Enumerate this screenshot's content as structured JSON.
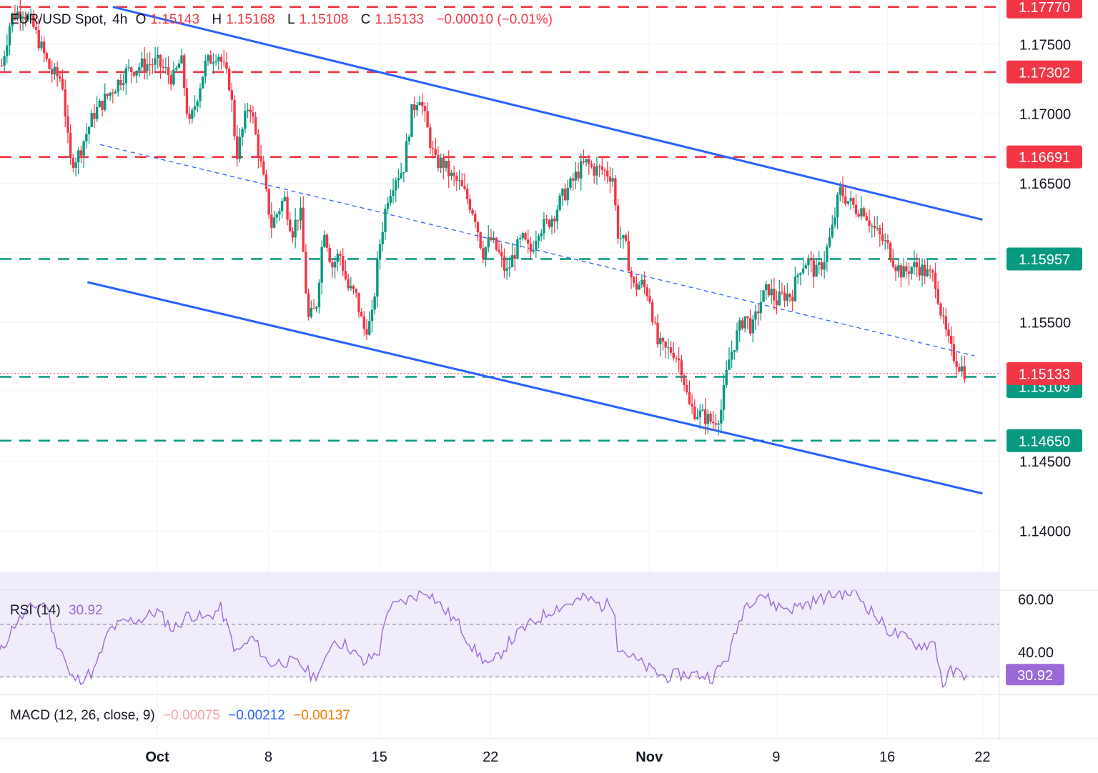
{
  "chart_data": {
    "type": "candlestick",
    "symbol": "EUR/USD Spot",
    "interval": "4h",
    "ohlc_legend": {
      "o_label": "O",
      "o": "1.15143",
      "h_label": "H",
      "h": "1.15168",
      "l_label": "L",
      "l": "1.15108",
      "c_label": "C",
      "c": "1.15133",
      "change": "−0.00010 (−0.01%)"
    },
    "x_ticks": [
      {
        "label": "Oct",
        "day": 0,
        "bold": true
      },
      {
        "label": "8",
        "day": 7
      },
      {
        "label": "15",
        "day": 14
      },
      {
        "label": "22",
        "day": 21
      },
      {
        "label": "Nov",
        "day": 31,
        "bold": true
      },
      {
        "label": "9",
        "day": 39
      },
      {
        "label": "16",
        "day": 46
      },
      {
        "label": "22",
        "day": 52
      }
    ],
    "y_ticks": [
      "1.17500",
      "1.17000",
      "1.16500",
      "1.15500",
      "1.14500",
      "1.14000"
    ],
    "ylim": [
      1.138,
      1.1782
    ],
    "price_levels": [
      {
        "value": 1.1777,
        "label": "1.17770",
        "kind": "resistance",
        "color": "#f23645"
      },
      {
        "value": 1.17302,
        "label": "1.17302",
        "kind": "resistance",
        "color": "#f23645"
      },
      {
        "value": 1.16691,
        "label": "1.16691",
        "kind": "resistance",
        "color": "#f23645"
      },
      {
        "value": 1.15957,
        "label": "1.15957",
        "kind": "support",
        "color": "#089981"
      },
      {
        "value": 1.15109,
        "label": "1.15109",
        "kind": "support",
        "color": "#089981"
      },
      {
        "value": 1.1465,
        "label": "1.14650",
        "kind": "support",
        "color": "#089981"
      }
    ],
    "last_price": {
      "value": 1.15133,
      "label": "1.15133",
      "color": "#f23645"
    },
    "channel": {
      "upper": [
        {
          "day": -2.8,
          "price": 1.1777
        },
        {
          "day": 52,
          "price": 1.1624
        }
      ],
      "lower": [
        {
          "day": -4.4,
          "price": 1.1579
        },
        {
          "day": 52,
          "price": 1.1427
        }
      ],
      "mid": [
        {
          "day": -3.6,
          "price": 1.1678
        },
        {
          "day": 51.5,
          "price": 1.1526
        }
      ]
    },
    "price_anchors": [
      [
        -9.8,
        1.1735
      ],
      [
        -9.2,
        1.177
      ],
      [
        -8.5,
        1.1775
      ],
      [
        -7.9,
        1.1765
      ],
      [
        -6.7,
        1.173
      ],
      [
        -6.0,
        1.1725
      ],
      [
        -5.5,
        1.1665
      ],
      [
        -5.0,
        1.167
      ],
      [
        -4.0,
        1.17
      ],
      [
        -3.0,
        1.1715
      ],
      [
        -2.0,
        1.173
      ],
      [
        -1.0,
        1.1735
      ],
      [
        0.0,
        1.1737
      ],
      [
        1.0,
        1.1725
      ],
      [
        1.5,
        1.174
      ],
      [
        2.0,
        1.169
      ],
      [
        3.0,
        1.1735
      ],
      [
        3.8,
        1.1745
      ],
      [
        4.6,
        1.172
      ],
      [
        5.0,
        1.167
      ],
      [
        5.8,
        1.171
      ],
      [
        6.5,
        1.1665
      ],
      [
        7.2,
        1.162
      ],
      [
        8.0,
        1.164
      ],
      [
        8.5,
        1.1615
      ],
      [
        9.0,
        1.1632
      ],
      [
        9.5,
        1.1552
      ],
      [
        10.0,
        1.156
      ],
      [
        10.5,
        1.162
      ],
      [
        11.0,
        1.159
      ],
      [
        11.5,
        1.16
      ],
      [
        12.0,
        1.1575
      ],
      [
        12.5,
        1.157
      ],
      [
        13.0,
        1.1545
      ],
      [
        13.5,
        1.155
      ],
      [
        14.0,
        1.1605
      ],
      [
        14.5,
        1.164
      ],
      [
        15.0,
        1.1655
      ],
      [
        15.5,
        1.166
      ],
      [
        16.0,
        1.17
      ],
      [
        16.5,
        1.1715
      ],
      [
        17.0,
        1.169
      ],
      [
        17.5,
        1.1665
      ],
      [
        18.0,
        1.1665
      ],
      [
        18.5,
        1.1655
      ],
      [
        19.0,
        1.165
      ],
      [
        19.5,
        1.164
      ],
      [
        20.0,
        1.1628
      ],
      [
        20.5,
        1.16
      ],
      [
        21.0,
        1.161
      ],
      [
        21.5,
        1.16
      ],
      [
        22.0,
        1.1585
      ],
      [
        22.5,
        1.16
      ],
      [
        23.0,
        1.161
      ],
      [
        23.5,
        1.16
      ],
      [
        24.0,
        1.1618
      ],
      [
        24.5,
        1.162
      ],
      [
        25.0,
        1.1628
      ],
      [
        25.5,
        1.164
      ],
      [
        26.0,
        1.1648
      ],
      [
        26.5,
        1.1658
      ],
      [
        27.0,
        1.1665
      ],
      [
        27.5,
        1.166
      ],
      [
        28.0,
        1.166
      ],
      [
        28.7,
        1.1655
      ],
      [
        29.0,
        1.1615
      ],
      [
        29.5,
        1.1605
      ],
      [
        30.0,
        1.1575
      ],
      [
        30.5,
        1.1578
      ],
      [
        31.0,
        1.157
      ],
      [
        31.5,
        1.1535
      ],
      [
        32.0,
        1.153
      ],
      [
        32.5,
        1.153
      ],
      [
        33.0,
        1.152
      ],
      [
        33.5,
        1.149
      ],
      [
        34.0,
        1.1485
      ],
      [
        34.5,
        1.1482
      ],
      [
        35.0,
        1.1478
      ],
      [
        35.5,
        1.1485
      ],
      [
        36.0,
        1.1522
      ],
      [
        36.5,
        1.154
      ],
      [
        37.0,
        1.1555
      ],
      [
        37.5,
        1.1545
      ],
      [
        38.0,
        1.1565
      ],
      [
        38.5,
        1.1575
      ],
      [
        39.0,
        1.1565
      ],
      [
        39.5,
        1.157
      ],
      [
        40.0,
        1.157
      ],
      [
        40.5,
        1.159
      ],
      [
        41.0,
        1.1595
      ],
      [
        41.5,
        1.1585
      ],
      [
        42.0,
        1.1595
      ],
      [
        42.5,
        1.1615
      ],
      [
        43.0,
        1.1645
      ],
      [
        43.5,
        1.1638
      ],
      [
        44.0,
        1.1632
      ],
      [
        44.5,
        1.1632
      ],
      [
        45.0,
        1.162
      ],
      [
        45.5,
        1.1612
      ],
      [
        46.0,
        1.1605
      ],
      [
        46.5,
        1.1592
      ],
      [
        47.0,
        1.1585
      ],
      [
        47.5,
        1.159
      ],
      [
        48.0,
        1.159
      ],
      [
        48.5,
        1.1585
      ],
      [
        49.0,
        1.1582
      ],
      [
        49.5,
        1.155
      ],
      [
        50.0,
        1.153
      ],
      [
        50.5,
        1.152
      ],
      [
        51.0,
        1.1513
      ]
    ],
    "rsi": {
      "label": "RSI (14)",
      "value": "30.92",
      "y_ticks": [
        "60.00",
        "40.00"
      ],
      "ylim": [
        23.4,
        63.0
      ],
      "levels": [
        50,
        30
      ],
      "anchors": [
        [
          -10,
          38
        ],
        [
          -9,
          50
        ],
        [
          -7.8,
          57
        ],
        [
          -7.0,
          58
        ],
        [
          -6.5,
          45
        ],
        [
          -6.0,
          40
        ],
        [
          -5.5,
          30
        ],
        [
          -5.0,
          29
        ],
        [
          -4.0,
          32
        ],
        [
          -3.0,
          48
        ],
        [
          -2.0,
          51
        ],
        [
          -1.0,
          52
        ],
        [
          0.0,
          55
        ],
        [
          1.0,
          48
        ],
        [
          2.0,
          54
        ],
        [
          3.0,
          52
        ],
        [
          4.0,
          56
        ],
        [
          5.0,
          39
        ],
        [
          6.0,
          45
        ],
        [
          7.0,
          35
        ],
        [
          8.0,
          36
        ],
        [
          9.0,
          35
        ],
        [
          9.8,
          30
        ],
        [
          10.5,
          34
        ],
        [
          11.0,
          44
        ],
        [
          12.0,
          42
        ],
        [
          13.0,
          35
        ],
        [
          14.0,
          40
        ],
        [
          14.5,
          56
        ],
        [
          15.0,
          57
        ],
        [
          16.0,
          60
        ],
        [
          17.0,
          63
        ],
        [
          18.0,
          56
        ],
        [
          19.0,
          50
        ],
        [
          20.0,
          40
        ],
        [
          21.0,
          34
        ],
        [
          22.0,
          42
        ],
        [
          23.0,
          48
        ],
        [
          24.0,
          52
        ],
        [
          25.0,
          56
        ],
        [
          26.0,
          58
        ],
        [
          27.0,
          60
        ],
        [
          28.0,
          57
        ],
        [
          28.8,
          58
        ],
        [
          29.0,
          42
        ],
        [
          30.0,
          37
        ],
        [
          31.0,
          33
        ],
        [
          32.0,
          30
        ],
        [
          33.0,
          31
        ],
        [
          34.0,
          31
        ],
        [
          35.0,
          30
        ],
        [
          36.0,
          38
        ],
        [
          37.0,
          57
        ],
        [
          38.0,
          62
        ],
        [
          39.0,
          57
        ],
        [
          40.0,
          56
        ],
        [
          41.0,
          58
        ],
        [
          42.0,
          60
        ],
        [
          43.0,
          62
        ],
        [
          44.0,
          62
        ],
        [
          45.0,
          55
        ],
        [
          46.0,
          48
        ],
        [
          47.0,
          45
        ],
        [
          48.0,
          42
        ],
        [
          49.0,
          43
        ],
        [
          49.5,
          27
        ],
        [
          50.0,
          32
        ],
        [
          51.0,
          30.92
        ]
      ]
    },
    "macd": {
      "label": "MACD (12, 26, close, 9)",
      "histogram": "−0.00075",
      "macd": "−0.00212",
      "signal": "−0.00137"
    },
    "grid": true,
    "colors": {
      "up": "#089981",
      "down": "#f23645",
      "channel": "#2962ff",
      "rsi": "#9c6ad6",
      "rsi_band": "#f1ecfb"
    }
  }
}
